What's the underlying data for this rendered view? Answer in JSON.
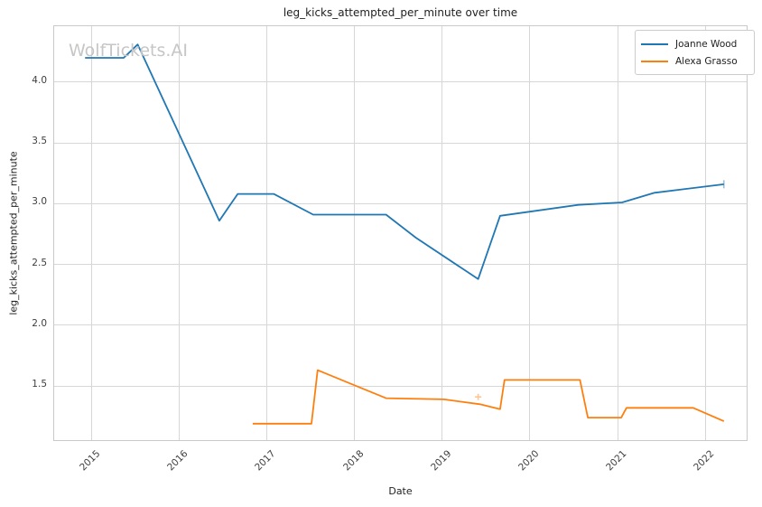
{
  "chart": {
    "title": "leg_kicks_attempted_per_minute over time",
    "watermark": "WolfTickets.AI",
    "x_axis_label": "Date",
    "y_axis_label": "leg_kicks_attempted_per_minute",
    "legend": [
      {
        "label": "Joanne Wood",
        "color": "#1f77b4"
      },
      {
        "label": "Alexa Grasso",
        "color": "#ff7f0e"
      }
    ]
  },
  "chart_data": {
    "type": "line",
    "title": "leg_kicks_attempted_per_minute over time",
    "xlabel": "Date",
    "ylabel": "leg_kicks_attempted_per_minute",
    "grid": true,
    "legend_position": "upper right",
    "xlim": [
      2014.578,
      2022.49
    ],
    "ylim": [
      1.04,
      4.46
    ],
    "xticks": [
      2015,
      2016,
      2017,
      2018,
      2019,
      2020,
      2021,
      2022
    ],
    "yticks": [
      1.5,
      2.0,
      2.5,
      3.0,
      3.5,
      4.0
    ],
    "series": [
      {
        "name": "Joanne Wood",
        "color": "#1f77b4",
        "x": [
          2014.93,
          2015.37,
          2015.53,
          2016.46,
          2016.67,
          2017.08,
          2017.53,
          2018.36,
          2018.7,
          2019.41,
          2019.66,
          2020.55,
          2021.05,
          2021.42,
          2022.21
        ],
        "y": [
          4.2,
          4.2,
          4.31,
          2.86,
          3.08,
          3.08,
          2.91,
          2.91,
          2.72,
          2.38,
          2.9,
          2.99,
          3.01,
          3.09,
          3.16
        ]
      },
      {
        "name": "Alexa Grasso",
        "color": "#ff7f0e",
        "x": [
          2016.84,
          2017.51,
          2017.58,
          2018.36,
          2019.02,
          2019.43,
          2019.66,
          2019.71,
          2020.57,
          2020.66,
          2021.04,
          2021.1,
          2021.86,
          2022.21
        ],
        "y": [
          1.19,
          1.19,
          1.63,
          1.4,
          1.39,
          1.35,
          1.31,
          1.55,
          1.55,
          1.24,
          1.24,
          1.32,
          1.32,
          1.21
        ]
      }
    ],
    "markers": [
      {
        "shape": "plus",
        "x": 2019.41,
        "y": 1.41,
        "color": "#ff7f0e",
        "opacity": 0.45
      },
      {
        "shape": "vline",
        "x": 2022.21,
        "y": 3.16,
        "color": "#1f77b4",
        "opacity": 0.45
      }
    ]
  }
}
